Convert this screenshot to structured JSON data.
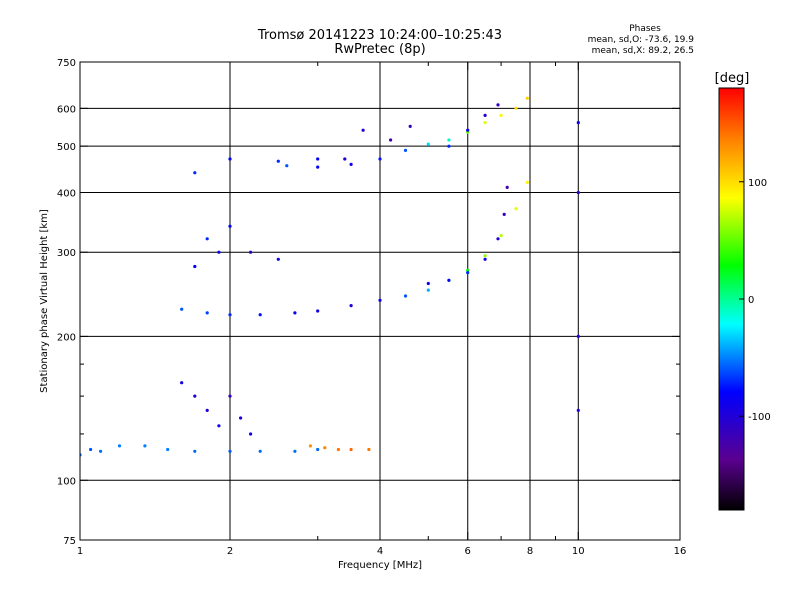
{
  "chart_data": {
    "type": "scatter",
    "title": "Tromsø 20141223 10:24:00–10:25:43",
    "subtitle": "RwPretec (8p)",
    "xlabel": "Frequency [MHz]",
    "ylabel": "Stationary phase Virtual Height [km]",
    "x_scale": "log",
    "y_scale": "log",
    "xlim": [
      1,
      16
    ],
    "ylim": [
      75,
      750
    ],
    "x_ticks": [
      1,
      2,
      4,
      6,
      8,
      10,
      16
    ],
    "x_tick_labels": [
      "1",
      "2",
      "4",
      "6",
      "8",
      "10",
      "16"
    ],
    "x_minor_ticks": [
      3,
      5,
      7,
      9
    ],
    "y_ticks": [
      75,
      100,
      200,
      300,
      400,
      500,
      600,
      750
    ],
    "y_tick_labels": [
      "75",
      "100",
      "200",
      "300",
      "400",
      "500",
      "600",
      "750"
    ],
    "y_minor_ticks": [
      125,
      150,
      175
    ],
    "x_gridlines": [
      2,
      4,
      6,
      8,
      10
    ],
    "y_gridlines": [
      100,
      200,
      300,
      400,
      500,
      600
    ],
    "stats": {
      "heading": "Phases",
      "line_o": "mean, sd,O: -73.6, 19.9",
      "line_x": "mean, sd,X: 89.2, 26.5"
    },
    "colorbar": {
      "label": "[deg]",
      "range": [
        -180,
        180
      ],
      "ticks": [
        100,
        0,
        -100
      ],
      "tick_labels": [
        "100",
        "0",
        "-100"
      ]
    },
    "series": [
      {
        "values": [
          [
            1.0,
            113,
            -55
          ],
          [
            1.05,
            116,
            -60
          ],
          [
            1.1,
            115,
            -55
          ],
          [
            1.2,
            118,
            -50
          ],
          [
            1.35,
            118,
            -50
          ],
          [
            1.5,
            116,
            -50
          ],
          [
            1.7,
            115,
            -55
          ],
          [
            2.0,
            115,
            -60
          ],
          [
            2.3,
            115,
            -55
          ],
          [
            2.7,
            115,
            -55
          ],
          [
            3.0,
            116,
            -55
          ]
        ]
      },
      {
        "values": [
          [
            2.9,
            118,
            130
          ],
          [
            3.1,
            117,
            135
          ],
          [
            3.3,
            116,
            140
          ],
          [
            3.5,
            116,
            145
          ],
          [
            3.8,
            116,
            140
          ]
        ]
      },
      {
        "values": [
          [
            1.6,
            228,
            -60
          ],
          [
            1.8,
            224,
            -65
          ],
          [
            2.0,
            222,
            -70
          ],
          [
            2.3,
            222,
            -75
          ],
          [
            2.7,
            224,
            -80
          ],
          [
            3.0,
            226,
            -90
          ],
          [
            3.5,
            232,
            -95
          ],
          [
            4.0,
            238,
            -85
          ],
          [
            4.5,
            243,
            -60
          ],
          [
            5.0,
            250,
            -40
          ],
          [
            5.5,
            262,
            0
          ],
          [
            6.0,
            275,
            30
          ],
          [
            6.5,
            295,
            60
          ],
          [
            7.0,
            325,
            70
          ],
          [
            7.5,
            370,
            80
          ],
          [
            7.9,
            420,
            90
          ]
        ]
      },
      {
        "values": [
          [
            2.6,
            455,
            -60
          ],
          [
            3.0,
            452,
            -80
          ],
          [
            3.5,
            458,
            -90
          ],
          [
            4.0,
            470,
            -75
          ],
          [
            4.5,
            490,
            -60
          ],
          [
            5.0,
            505,
            -30
          ],
          [
            5.5,
            515,
            -10
          ],
          [
            6.0,
            535,
            50
          ],
          [
            6.5,
            560,
            80
          ],
          [
            7.0,
            580,
            90
          ],
          [
            7.5,
            600,
            100
          ],
          [
            7.9,
            630,
            105
          ]
        ]
      },
      {
        "values": [
          [
            5.0,
            258,
            -90
          ],
          [
            5.5,
            262,
            -80
          ],
          [
            6.0,
            272,
            -70
          ],
          [
            6.5,
            290,
            -90
          ],
          [
            6.9,
            320,
            -100
          ],
          [
            7.1,
            360,
            -110
          ],
          [
            7.2,
            410,
            -120
          ]
        ]
      },
      {
        "values": [
          [
            5.5,
            500,
            -70
          ],
          [
            6.0,
            540,
            -90
          ],
          [
            6.5,
            580,
            -100
          ],
          [
            6.9,
            610,
            -110
          ]
        ]
      },
      {
        "values": [
          [
            1.6,
            160,
            -90
          ],
          [
            1.7,
            150,
            -100
          ],
          [
            1.8,
            140,
            -100
          ],
          [
            1.9,
            130,
            -90
          ],
          [
            2.0,
            150,
            -110
          ],
          [
            2.1,
            135,
            -100
          ],
          [
            2.2,
            125,
            -90
          ]
        ]
      },
      {
        "values": [
          [
            1.7,
            280,
            -80
          ],
          [
            1.8,
            320,
            -70
          ],
          [
            1.9,
            300,
            -90
          ],
          [
            2.0,
            340,
            -80
          ],
          [
            2.2,
            300,
            -100
          ],
          [
            2.5,
            290,
            -90
          ]
        ]
      },
      {
        "values": [
          [
            1.7,
            440,
            -70
          ],
          [
            2.0,
            470,
            -80
          ],
          [
            2.5,
            465,
            -70
          ],
          [
            3.0,
            470,
            -80
          ],
          [
            3.4,
            470,
            -100
          ],
          [
            3.7,
            540,
            -100
          ],
          [
            4.2,
            515,
            -120
          ],
          [
            4.6,
            550,
            -110
          ]
        ]
      },
      {
        "values": [
          [
            10.0,
            400,
            -110
          ],
          [
            10.0,
            560,
            -90
          ],
          [
            10.0,
            200,
            -100
          ],
          [
            10.0,
            140,
            -100
          ]
        ]
      }
    ]
  }
}
